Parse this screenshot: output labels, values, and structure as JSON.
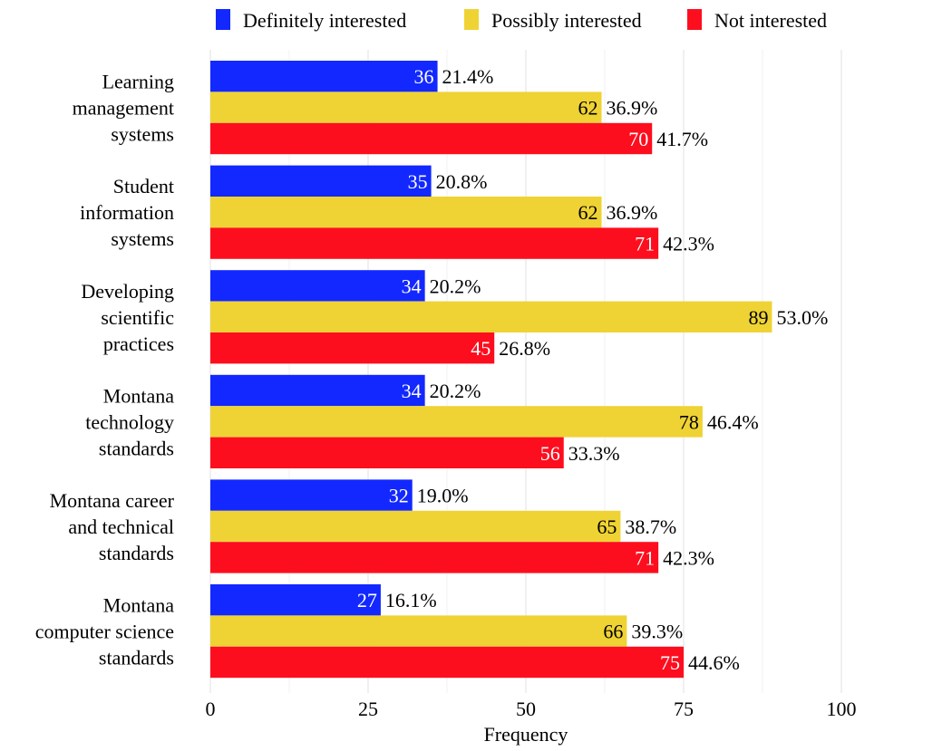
{
  "chart_data": {
    "type": "bar",
    "orientation": "horizontal",
    "title": "",
    "xlabel": "Frequency",
    "ylabel": "",
    "xlim": [
      0,
      100
    ],
    "x_ticks": [
      0,
      25,
      50,
      75,
      100
    ],
    "x_tick_labels": [
      "0",
      "25",
      "50",
      "75",
      "100"
    ],
    "grid": true,
    "legend_position": "top",
    "categories": [
      [
        "Learning",
        "management",
        "systems"
      ],
      [
        "Student",
        "information",
        "systems"
      ],
      [
        "Developing",
        "scientific",
        "practices"
      ],
      [
        "Montana",
        "technology",
        "standards"
      ],
      [
        "Montana career",
        "and technical",
        "standards"
      ],
      [
        "Montana",
        "computer science",
        "standards"
      ]
    ],
    "series": [
      {
        "name": "Definitely interested",
        "color": "#1228ff",
        "label_color": "#ffffff",
        "values": [
          36,
          35,
          34,
          34,
          32,
          27
        ],
        "percent_labels": [
          "21.4%",
          "20.8%",
          "20.2%",
          "20.2%",
          "19.0%",
          "16.1%"
        ]
      },
      {
        "name": "Possibly interested",
        "color": "#efd334",
        "label_color": "#000000",
        "values": [
          62,
          62,
          89,
          78,
          65,
          66
        ],
        "percent_labels": [
          "36.9%",
          "36.9%",
          "53.0%",
          "46.4%",
          "38.7%",
          "39.3%"
        ]
      },
      {
        "name": "Not interested",
        "color": "#fd0e1e",
        "label_color": "#ffffff",
        "values": [
          70,
          71,
          45,
          56,
          71,
          75
        ],
        "percent_labels": [
          "41.7%",
          "42.3%",
          "26.8%",
          "33.3%",
          "42.3%",
          "44.6%"
        ]
      }
    ]
  }
}
